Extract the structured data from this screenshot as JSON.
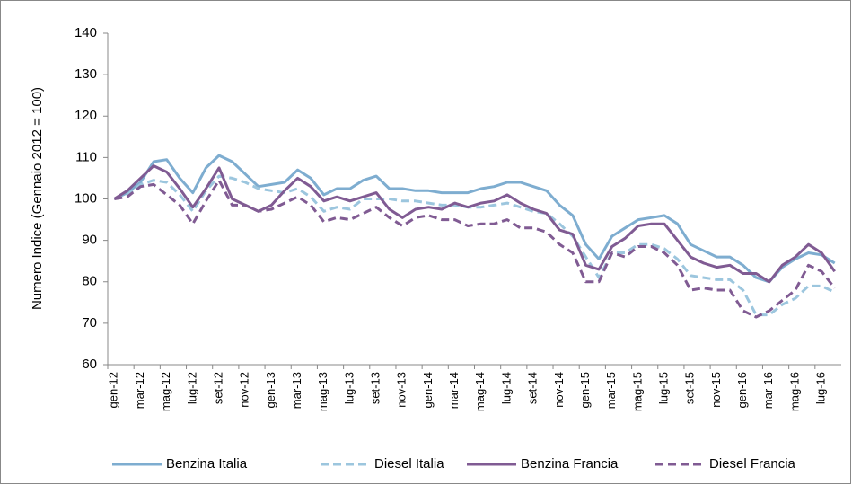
{
  "chart_data": {
    "type": "line",
    "y_label": "Numero Indice (Gennaio 2012 = 100)",
    "categories": [
      "gen-12",
      null,
      "mar-12",
      null,
      "mag-12",
      null,
      "lug-12",
      null,
      "set-12",
      null,
      "nov-12",
      null,
      "gen-13",
      null,
      "mar-13",
      null,
      "mag-13",
      null,
      "lug-13",
      null,
      "set-13",
      null,
      "nov-13",
      null,
      "gen-14",
      null,
      "mar-14",
      null,
      "mag-14",
      null,
      "lug-14",
      null,
      "set-14",
      null,
      "nov-14",
      null,
      "gen-15",
      null,
      "mar-15",
      null,
      "mag-15",
      null,
      "lug-15",
      null,
      "set-15",
      null,
      "nov-15",
      null,
      "gen-16",
      null,
      "mar-16",
      null,
      "mag-16",
      null,
      "lug-16",
      null
    ],
    "ylim": [
      60,
      140
    ],
    "yticks": [
      60,
      70,
      80,
      90,
      100,
      110,
      120,
      130,
      140
    ],
    "grid": false,
    "legend": "bottom",
    "series": [
      {
        "name": "Benzina Italia",
        "color": "#7eadd0",
        "dashed": false,
        "values": [
          100,
          101.5,
          104,
          109,
          109.5,
          105,
          101.5,
          107.5,
          110.5,
          109,
          106,
          103,
          103.5,
          104,
          107,
          105,
          101,
          102.5,
          102.5,
          104.5,
          105.5,
          102.5,
          102.5,
          102,
          102,
          101.5,
          101.5,
          101.5,
          102.5,
          103,
          104,
          104,
          103,
          102,
          98.5,
          96,
          89,
          85.5,
          91,
          93,
          95,
          95.5,
          96,
          94,
          89,
          87.5,
          86,
          86,
          84,
          81,
          80,
          83.5,
          85.5,
          87,
          86.5,
          84.5
        ]
      },
      {
        "name": "Diesel Italia",
        "color": "#9cc6de",
        "dashed": true,
        "values": [
          100,
          101,
          103.5,
          104.5,
          104,
          101,
          97,
          102,
          105.5,
          105,
          104,
          102.5,
          102,
          101.5,
          102.5,
          100.5,
          97,
          98,
          97.5,
          100,
          100,
          100,
          99.5,
          99.5,
          99,
          98.5,
          98.5,
          98,
          98,
          98.5,
          99,
          98,
          97,
          96.5,
          94,
          91,
          86,
          81,
          87,
          87,
          89,
          89,
          88,
          85.5,
          81.5,
          81,
          80.5,
          80.5,
          78,
          72,
          72,
          74.5,
          76,
          79,
          79,
          77.5
        ]
      },
      {
        "name": "Benzina Francia",
        "color": "#805b93",
        "dashed": false,
        "values": [
          100,
          102,
          105,
          108,
          106.5,
          102.5,
          98,
          102.5,
          107.5,
          100,
          98.5,
          97,
          98.5,
          102,
          105,
          103,
          99.5,
          100.5,
          99.5,
          100.5,
          101.5,
          97.5,
          95.5,
          97.5,
          98,
          97.5,
          99,
          98,
          99,
          99.5,
          101,
          99,
          97.5,
          96.5,
          92.5,
          91.5,
          84,
          83,
          88.5,
          90.5,
          93.5,
          94,
          94,
          90,
          86,
          84.5,
          83.5,
          84,
          82,
          82,
          80,
          84,
          86,
          89,
          87,
          82.5
        ]
      },
      {
        "name": "Diesel Francia",
        "color": "#805b93",
        "dashed": true,
        "values": [
          100,
          100.5,
          103,
          103.5,
          101,
          98.5,
          94,
          99.5,
          104.5,
          98.5,
          98.5,
          97,
          97.5,
          99,
          100.5,
          98.5,
          94.5,
          95.5,
          95,
          96.5,
          98,
          95.5,
          93.5,
          95.5,
          96,
          95,
          95,
          93.5,
          94,
          94,
          95,
          93,
          93,
          92,
          89,
          87,
          80,
          80,
          87,
          86,
          88.5,
          88.5,
          87,
          84,
          78,
          78.5,
          78,
          78,
          73,
          71.5,
          73,
          75.5,
          78,
          84,
          82.5,
          78.5
        ]
      }
    ]
  }
}
